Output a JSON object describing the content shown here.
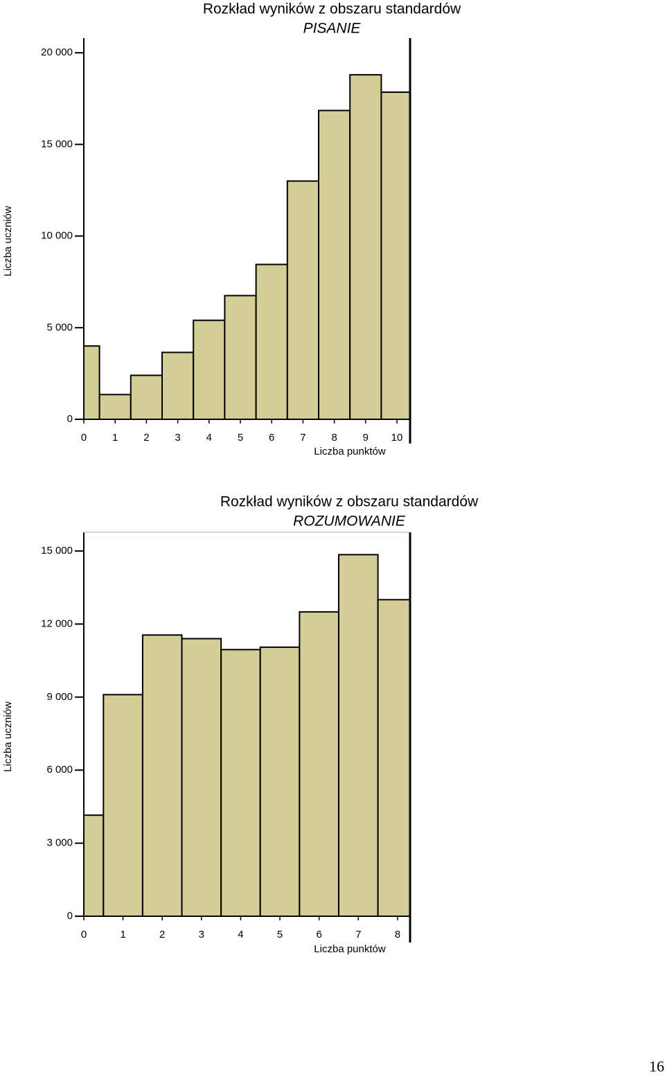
{
  "chart_data": [
    {
      "type": "bar",
      "title": "Rozkład wyników z obszaru standardów",
      "subtitle": "PISANIE",
      "x_label": "Liczba punktów",
      "y_label": "Liczba uczniów",
      "x": [
        0,
        1,
        2,
        3,
        4,
        5,
        6,
        7,
        8,
        9,
        10
      ],
      "values": [
        4000,
        1350,
        2400,
        3650,
        5400,
        6750,
        8450,
        13000,
        16850,
        18800,
        17850
      ],
      "color": "#d3ce97",
      "xlim": [
        0,
        10.42
      ],
      "xticks": [
        0,
        1,
        2,
        3,
        4,
        5,
        6,
        7,
        8,
        9,
        10
      ],
      "ylim": [
        0,
        20800
      ],
      "yticks": [
        0,
        {
          "value": 5000,
          "label": "5 000"
        },
        {
          "value": 10000,
          "label": "10 000"
        },
        {
          "value": 15000,
          "label": "15 000"
        },
        {
          "value": 20000,
          "label": "20 000"
        }
      ]
    },
    {
      "type": "bar",
      "title": "Rozkład wyników z obszaru standardów",
      "subtitle": "ROZUMOWANIE",
      "x_label": "Liczba punktów",
      "y_label": "Liczba uczniów",
      "x": [
        0,
        1,
        2,
        3,
        4,
        5,
        6,
        7,
        8
      ],
      "values": [
        4150,
        9100,
        11550,
        11400,
        10950,
        11050,
        12500,
        14850,
        13000
      ],
      "color": "#d3ce97",
      "xlim": [
        0,
        8.32
      ],
      "xticks": [
        0,
        1,
        2,
        3,
        4,
        5,
        6,
        7,
        8
      ],
      "ylim": [
        0,
        15770
      ],
      "yticks": [
        0,
        {
          "value": 3000,
          "label": "3 000"
        },
        {
          "value": 6000,
          "label": "6 000"
        },
        {
          "value": 9000,
          "label": "9 000"
        },
        {
          "value": 12000,
          "label": "12 000"
        },
        {
          "value": 15000,
          "label": "15 000"
        }
      ]
    }
  ],
  "page_number": "16"
}
